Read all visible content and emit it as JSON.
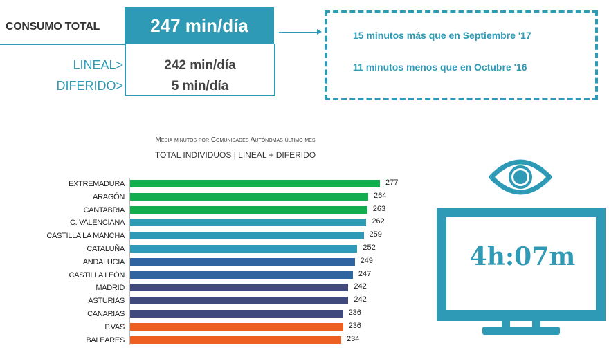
{
  "header": {
    "consumo_label": "CONSUMO TOTAL",
    "total_value": "247 min/día",
    "lineal_label": "LINEAL>",
    "lineal_value": "242 min/día",
    "diferido_label": "DIFERIDO>",
    "diferido_value": "5 min/día"
  },
  "comparison": {
    "line1": "15 minutos más que en Septiembre '17",
    "line2": "11 minutos menos que en Octubre '16"
  },
  "tv": {
    "display": "4h:07m",
    "icon": "eye-icon"
  },
  "colors": {
    "accent": "#2e9ab5",
    "green": "#12ad4f",
    "teal": "#2e9ab5",
    "blue": "#2f64a0",
    "navy": "#404a7c",
    "orange": "#ee6022"
  },
  "chart_data": {
    "type": "bar",
    "orientation": "horizontal",
    "title": "Media minutos por Comunidades Autónomas último mes",
    "subtitle": "TOTAL INDIVIDUOS | LINEAL + DIFERIDO",
    "xlabel": "",
    "ylabel": "",
    "grid": false,
    "categories": [
      "EXTREMADURA",
      "ARAGÓN",
      "CANTABRIA",
      "C. VALENCIANA",
      "CASTILLA LA MANCHA",
      "CATALUÑA",
      "ANDALUCIA",
      "CASTILLA LEÓN",
      "MADRID",
      "ASTURIAS",
      "CANARIAS",
      "P.VAS",
      "BALEARES"
    ],
    "values": [
      277,
      264,
      263,
      262,
      259,
      252,
      249,
      247,
      242,
      242,
      236,
      236,
      234
    ],
    "bar_colors": [
      "#12ad4f",
      "#12ad4f",
      "#12ad4f",
      "#2e9ab5",
      "#2e9ab5",
      "#2e9ab5",
      "#2f64a0",
      "#2f64a0",
      "#404a7c",
      "#404a7c",
      "#404a7c",
      "#ee6022",
      "#ee6022"
    ]
  }
}
